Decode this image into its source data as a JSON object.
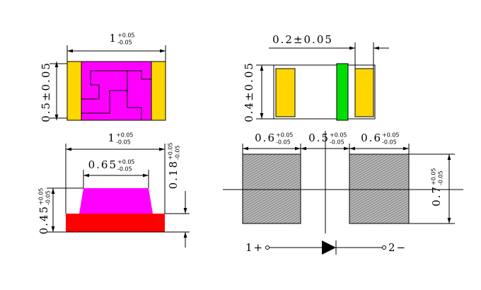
{
  "dimensions": [
    {
      "main": "1",
      "plus": "+0.05",
      "minus": "-0.05"
    },
    {
      "main": "0.5±0.05"
    },
    {
      "main": "1",
      "plus": "+0.05",
      "minus": "-0.05"
    },
    {
      "main": "0.65",
      "plus": "+0.05",
      "minus": "-0.05"
    },
    {
      "main": "0.18",
      "plus": "+0.05",
      "minus": "-0.05"
    },
    {
      "main": "0.45",
      "plus": "+0.05",
      "minus": "-0.05"
    },
    {
      "main": "0.2±0.05"
    },
    {
      "main": "0.4±0.05"
    },
    {
      "main": "0.6",
      "plus": "+0.05",
      "minus": "-0.05"
    },
    {
      "main": "0.5",
      "plus": "+0.05",
      "minus": "-0.05"
    },
    {
      "main": "0.6",
      "plus": "+0.05",
      "minus": "-0.05"
    },
    {
      "main": "0.7",
      "plus": "+0.05",
      "minus": "-0.05"
    }
  ],
  "pins": [
    "1+",
    "2−"
  ]
}
